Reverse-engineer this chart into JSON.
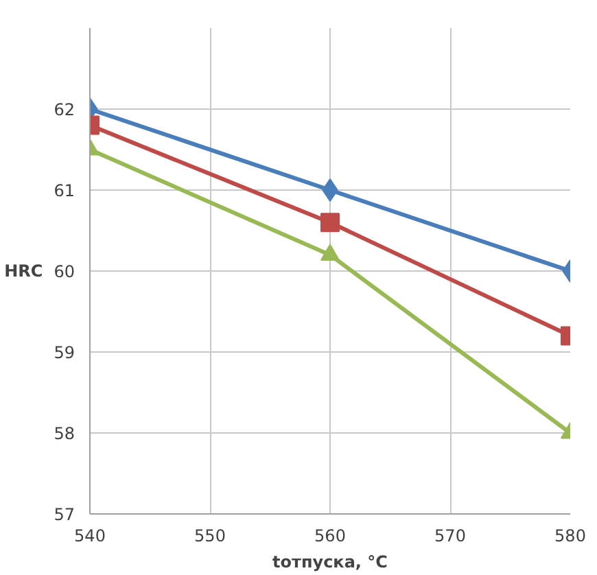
{
  "chart_data": {
    "type": "line",
    "ylabel": "HRC",
    "xlabel": "tотпуска, °C",
    "x": [
      540,
      560,
      580
    ],
    "xlim": [
      540,
      580
    ],
    "xticks": [
      540,
      550,
      560,
      570,
      580
    ],
    "ylim": [
      57,
      63
    ],
    "yticks": [
      57,
      58,
      59,
      60,
      61,
      62
    ],
    "grid": true,
    "line_style": "solid",
    "series": [
      {
        "color": "#4a7ebb",
        "marker": "diamond",
        "values": [
          62,
          61,
          60
        ]
      },
      {
        "color": "#be4b48",
        "marker": "square",
        "values": [
          61.8,
          60.6,
          59.2
        ]
      },
      {
        "color": "#98b954",
        "marker": "triangle",
        "values": [
          61.5,
          60.2,
          58
        ]
      }
    ]
  }
}
